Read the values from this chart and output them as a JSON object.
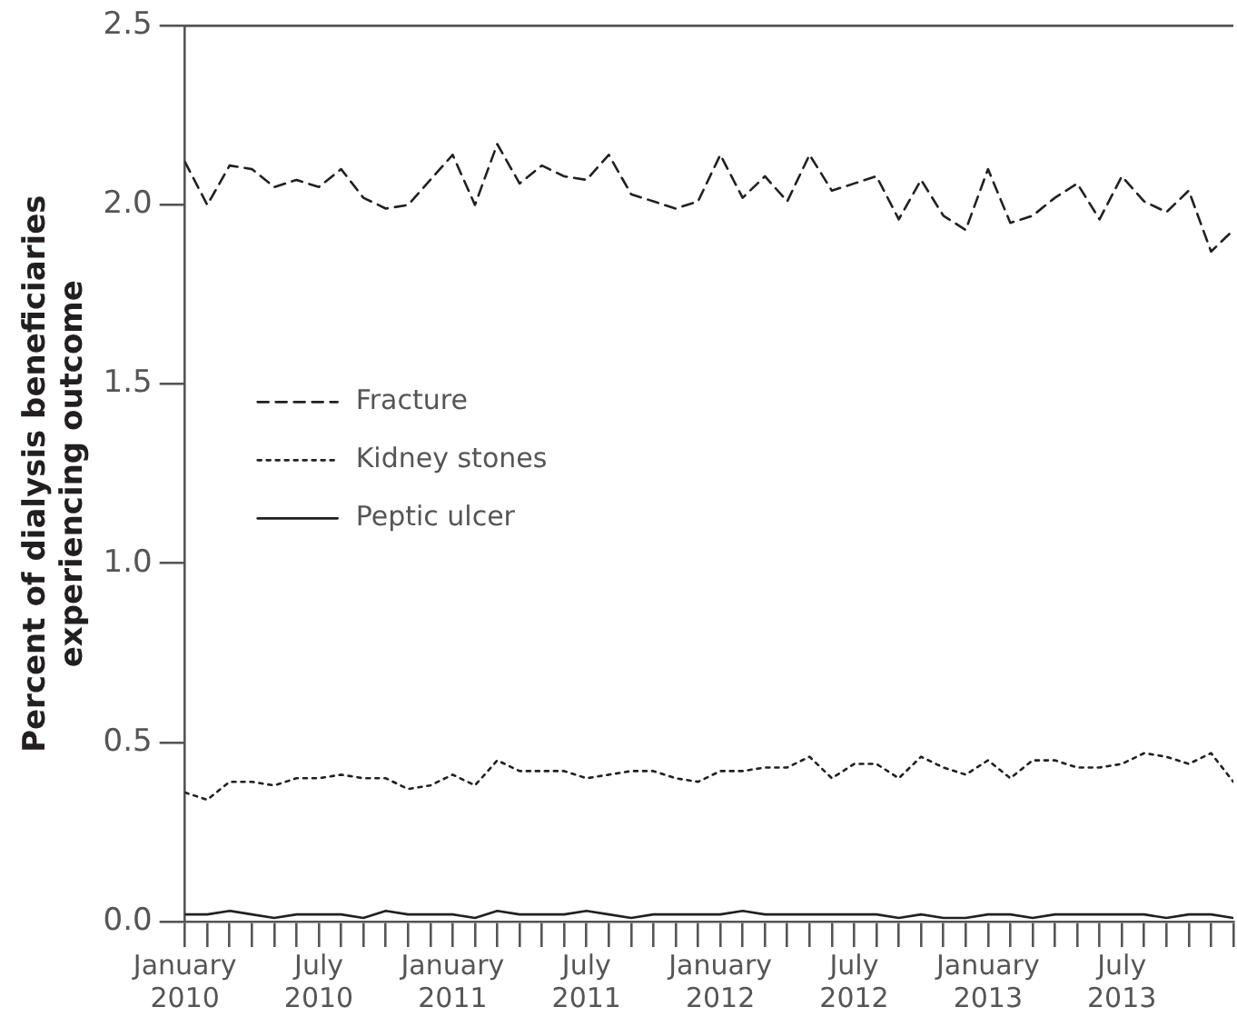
{
  "chart_data": {
    "type": "line",
    "ylabel": "Percent of dialysis beneficiaries\nexperiencing outcome",
    "x": [
      "2010-01",
      "2010-02",
      "2010-03",
      "2010-04",
      "2010-05",
      "2010-06",
      "2010-07",
      "2010-08",
      "2010-09",
      "2010-10",
      "2010-11",
      "2010-12",
      "2011-01",
      "2011-02",
      "2011-03",
      "2011-04",
      "2011-05",
      "2011-06",
      "2011-07",
      "2011-08",
      "2011-09",
      "2011-10",
      "2011-11",
      "2011-12",
      "2012-01",
      "2012-02",
      "2012-03",
      "2012-04",
      "2012-05",
      "2012-06",
      "2012-07",
      "2012-08",
      "2012-09",
      "2012-10",
      "2012-11",
      "2012-12",
      "2013-01",
      "2013-02",
      "2013-03",
      "2013-04",
      "2013-05",
      "2013-06",
      "2013-07",
      "2013-08",
      "2013-09",
      "2013-10",
      "2013-11",
      "2013-12"
    ],
    "series": [
      {
        "name": "Fracture",
        "color": "#231f20",
        "line_style": "dashed",
        "values": [
          2.12,
          2.0,
          2.11,
          2.1,
          2.05,
          2.07,
          2.05,
          2.1,
          2.02,
          1.99,
          2.0,
          2.07,
          2.14,
          2.0,
          2.17,
          2.06,
          2.11,
          2.08,
          2.07,
          2.14,
          2.03,
          2.01,
          1.99,
          2.01,
          2.14,
          2.02,
          2.08,
          2.01,
          2.14,
          2.04,
          2.06,
          2.08,
          1.96,
          2.07,
          1.97,
          1.93,
          2.1,
          1.95,
          1.97,
          2.02,
          2.06,
          1.96,
          2.08,
          2.01,
          1.98,
          2.04,
          1.87,
          1.93
        ]
      },
      {
        "name": "Kidney stones",
        "color": "#231f20",
        "line_style": "dotted",
        "values": [
          0.36,
          0.34,
          0.39,
          0.39,
          0.38,
          0.4,
          0.4,
          0.41,
          0.4,
          0.4,
          0.37,
          0.38,
          0.41,
          0.38,
          0.45,
          0.42,
          0.42,
          0.42,
          0.4,
          0.41,
          0.42,
          0.42,
          0.4,
          0.39,
          0.42,
          0.42,
          0.43,
          0.43,
          0.46,
          0.4,
          0.44,
          0.44,
          0.4,
          0.46,
          0.43,
          0.41,
          0.45,
          0.4,
          0.45,
          0.45,
          0.43,
          0.43,
          0.44,
          0.47,
          0.46,
          0.44,
          0.47,
          0.39
        ]
      },
      {
        "name": "Peptic ulcer",
        "color": "#231f20",
        "line_style": "solid",
        "values": [
          0.02,
          0.02,
          0.03,
          0.02,
          0.01,
          0.02,
          0.02,
          0.02,
          0.01,
          0.03,
          0.02,
          0.02,
          0.02,
          0.01,
          0.03,
          0.02,
          0.02,
          0.02,
          0.03,
          0.02,
          0.01,
          0.02,
          0.02,
          0.02,
          0.02,
          0.03,
          0.02,
          0.02,
          0.02,
          0.02,
          0.02,
          0.02,
          0.01,
          0.02,
          0.01,
          0.01,
          0.02,
          0.02,
          0.01,
          0.02,
          0.02,
          0.02,
          0.02,
          0.02,
          0.01,
          0.02,
          0.02,
          0.01
        ]
      }
    ],
    "xlim": [
      "2010-01",
      "2013-12"
    ],
    "xticks": [
      {
        "value": "2010-01",
        "label": "January\n2010"
      },
      {
        "value": "2010-02",
        "label": null
      },
      {
        "value": "2010-03",
        "label": null
      },
      {
        "value": "2010-04",
        "label": null
      },
      {
        "value": "2010-05",
        "label": null
      },
      {
        "value": "2010-06",
        "label": null
      },
      {
        "value": "2010-07",
        "label": "July\n2010"
      },
      {
        "value": "2010-08",
        "label": null
      },
      {
        "value": "2010-09",
        "label": null
      },
      {
        "value": "2010-10",
        "label": null
      },
      {
        "value": "2010-11",
        "label": null
      },
      {
        "value": "2010-12",
        "label": null
      },
      {
        "value": "2011-01",
        "label": "January\n2011"
      },
      {
        "value": "2011-02",
        "label": null
      },
      {
        "value": "2011-03",
        "label": null
      },
      {
        "value": "2011-04",
        "label": null
      },
      {
        "value": "2011-05",
        "label": null
      },
      {
        "value": "2011-06",
        "label": null
      },
      {
        "value": "2011-07",
        "label": "July\n2011"
      },
      {
        "value": "2011-08",
        "label": null
      },
      {
        "value": "2011-09",
        "label": null
      },
      {
        "value": "2011-10",
        "label": null
      },
      {
        "value": "2011-11",
        "label": null
      },
      {
        "value": "2011-12",
        "label": null
      },
      {
        "value": "2012-01",
        "label": "January\n2012"
      },
      {
        "value": "2012-02",
        "label": null
      },
      {
        "value": "2012-03",
        "label": null
      },
      {
        "value": "2012-04",
        "label": null
      },
      {
        "value": "2012-05",
        "label": null
      },
      {
        "value": "2012-06",
        "label": null
      },
      {
        "value": "2012-07",
        "label": "July\n2012"
      },
      {
        "value": "2012-08",
        "label": null
      },
      {
        "value": "2012-09",
        "label": null
      },
      {
        "value": "2012-10",
        "label": null
      },
      {
        "value": "2012-11",
        "label": null
      },
      {
        "value": "2012-12",
        "label": null
      },
      {
        "value": "2013-01",
        "label": "January\n2013"
      },
      {
        "value": "2013-02",
        "label": null
      },
      {
        "value": "2013-03",
        "label": null
      },
      {
        "value": "2013-04",
        "label": null
      },
      {
        "value": "2013-05",
        "label": null
      },
      {
        "value": "2013-06",
        "label": null
      },
      {
        "value": "2013-07",
        "label": "July\n2013"
      },
      {
        "value": "2013-08",
        "label": null
      },
      {
        "value": "2013-09",
        "label": null
      },
      {
        "value": "2013-10",
        "label": null
      },
      {
        "value": "2013-11",
        "label": null
      },
      {
        "value": "2013-12",
        "label": null
      }
    ],
    "ylim": [
      0,
      2.5
    ],
    "yticks": [
      {
        "value": 0,
        "label": "0.0"
      },
      0.5,
      {
        "value": 1,
        "label": "1.0"
      },
      1.5,
      {
        "value": 2,
        "label": "2.0"
      },
      2.5
    ],
    "grid": false,
    "legend": "left",
    "marker": "none"
  }
}
